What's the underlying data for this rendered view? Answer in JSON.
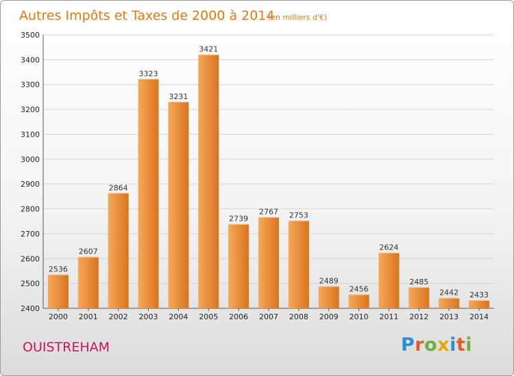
{
  "chart_data": {
    "type": "bar",
    "title": "Autres Impôts et Taxes de 2000 à 2014",
    "subtitle": "(en milliers d'€)",
    "categories": [
      "2000",
      "2001",
      "2002",
      "2003",
      "2004",
      "2005",
      "2006",
      "2007",
      "2008",
      "2009",
      "2010",
      "2011",
      "2012",
      "2013",
      "2014"
    ],
    "values": [
      2536,
      2607,
      2864,
      3323,
      3231,
      3421,
      2739,
      2767,
      2753,
      2489,
      2456,
      2624,
      2485,
      2442,
      2433
    ],
    "ylim": [
      2400,
      3500
    ],
    "yticks": [
      2400,
      2500,
      2600,
      2700,
      2800,
      2900,
      3000,
      3100,
      3200,
      3300,
      3400,
      3500
    ],
    "grid": true,
    "legend": "none",
    "bar_color_light": "#f7a85a",
    "bar_color_dark": "#d8741e",
    "title_color": "#e07a10"
  },
  "footer": {
    "city": "OUISTREHAM",
    "logo_letters": [
      {
        "ch": "P",
        "color": "#2a8fd6"
      },
      {
        "ch": "r",
        "color": "#e65a2a"
      },
      {
        "ch": "o",
        "color": "#6ab33a"
      },
      {
        "ch": "x",
        "color": "#e6a800"
      },
      {
        "ch": "i",
        "color": "#2a8fd6"
      },
      {
        "ch": "t",
        "color": "#e65a2a"
      },
      {
        "ch": "i",
        "color": "#6ab33a"
      }
    ],
    "city_color": "#c2185b"
  }
}
